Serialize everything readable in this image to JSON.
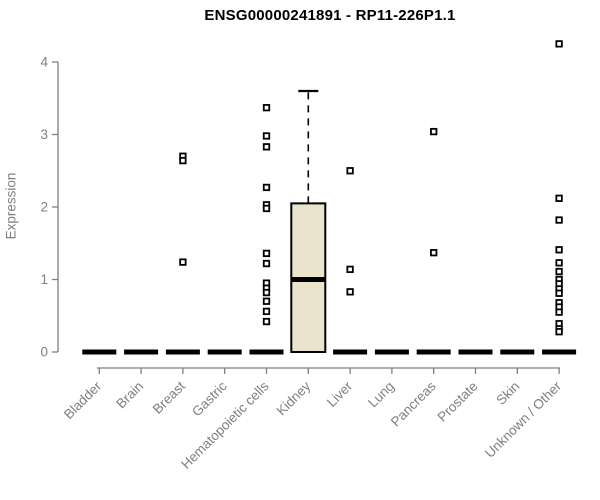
{
  "chart_data": {
    "type": "box",
    "title": "ENSG00000241891 - RP11-226P1.1",
    "ylabel": "Expression",
    "xlabel": "",
    "ylim": [
      0,
      4.3
    ],
    "yticks": [
      0,
      1,
      2,
      3,
      4
    ],
    "grid": false,
    "legend": null,
    "categories": [
      "Bladder",
      "Brain",
      "Breast",
      "Gastric",
      "Hematopoietic cells",
      "Kidney",
      "Liver",
      "Lung",
      "Pancreas",
      "Prostate",
      "Skin",
      "Unknown / Other"
    ],
    "boxes": [
      {
        "category": "Bladder",
        "q1": 0,
        "median": 0,
        "q3": 0,
        "whisker_low": 0,
        "whisker_high": 0,
        "outliers": []
      },
      {
        "category": "Brain",
        "q1": 0,
        "median": 0,
        "q3": 0,
        "whisker_low": 0,
        "whisker_high": 0,
        "outliers": []
      },
      {
        "category": "Breast",
        "q1": 0,
        "median": 0,
        "q3": 0,
        "whisker_low": 0,
        "whisker_high": 0,
        "outliers": [
          2.7,
          2.64,
          1.24
        ]
      },
      {
        "category": "Gastric",
        "q1": 0,
        "median": 0,
        "q3": 0,
        "whisker_low": 0,
        "whisker_high": 0,
        "outliers": []
      },
      {
        "category": "Hematopoietic cells",
        "q1": 0,
        "median": 0,
        "q3": 0,
        "whisker_low": 0,
        "whisker_high": 0,
        "outliers": [
          3.37,
          2.98,
          2.83,
          2.27,
          2.03,
          1.98,
          1.36,
          1.22,
          0.95,
          0.88,
          0.82,
          0.7,
          0.56,
          0.42
        ]
      },
      {
        "category": "Kidney",
        "q1": 0,
        "median": 1.0,
        "q3": 2.05,
        "whisker_low": 0,
        "whisker_high": 3.6,
        "outliers": []
      },
      {
        "category": "Liver",
        "q1": 0,
        "median": 0,
        "q3": 0,
        "whisker_low": 0,
        "whisker_high": 0,
        "outliers": [
          2.5,
          1.14,
          0.83
        ]
      },
      {
        "category": "Lung",
        "q1": 0,
        "median": 0,
        "q3": 0,
        "whisker_low": 0,
        "whisker_high": 0,
        "outliers": []
      },
      {
        "category": "Pancreas",
        "q1": 0,
        "median": 0,
        "q3": 0,
        "whisker_low": 0,
        "whisker_high": 0,
        "outliers": [
          3.04,
          1.37
        ]
      },
      {
        "category": "Prostate",
        "q1": 0,
        "median": 0,
        "q3": 0,
        "whisker_low": 0,
        "whisker_high": 0,
        "outliers": []
      },
      {
        "category": "Skin",
        "q1": 0,
        "median": 0,
        "q3": 0,
        "whisker_low": 0,
        "whisker_high": 0,
        "outliers": []
      },
      {
        "category": "Unknown / Other",
        "q1": 0,
        "median": 0,
        "q3": 0,
        "whisker_low": 0,
        "whisker_high": 0,
        "outliers": [
          4.25,
          2.12,
          1.82,
          1.41,
          1.23,
          1.11,
          1.0,
          0.94,
          0.87,
          0.81,
          0.68,
          0.62,
          0.55,
          0.39,
          0.32,
          0.28
        ]
      }
    ],
    "colors": {
      "background": "#ffffff",
      "box_fill": "#E9E4CB",
      "box_border": "#000000",
      "median": "#000000",
      "outlier_fill": "#ffffff",
      "outlier_border": "#000000",
      "axis": "#808080",
      "tick_label": "#7f7f7f",
      "title": "#000000"
    }
  }
}
